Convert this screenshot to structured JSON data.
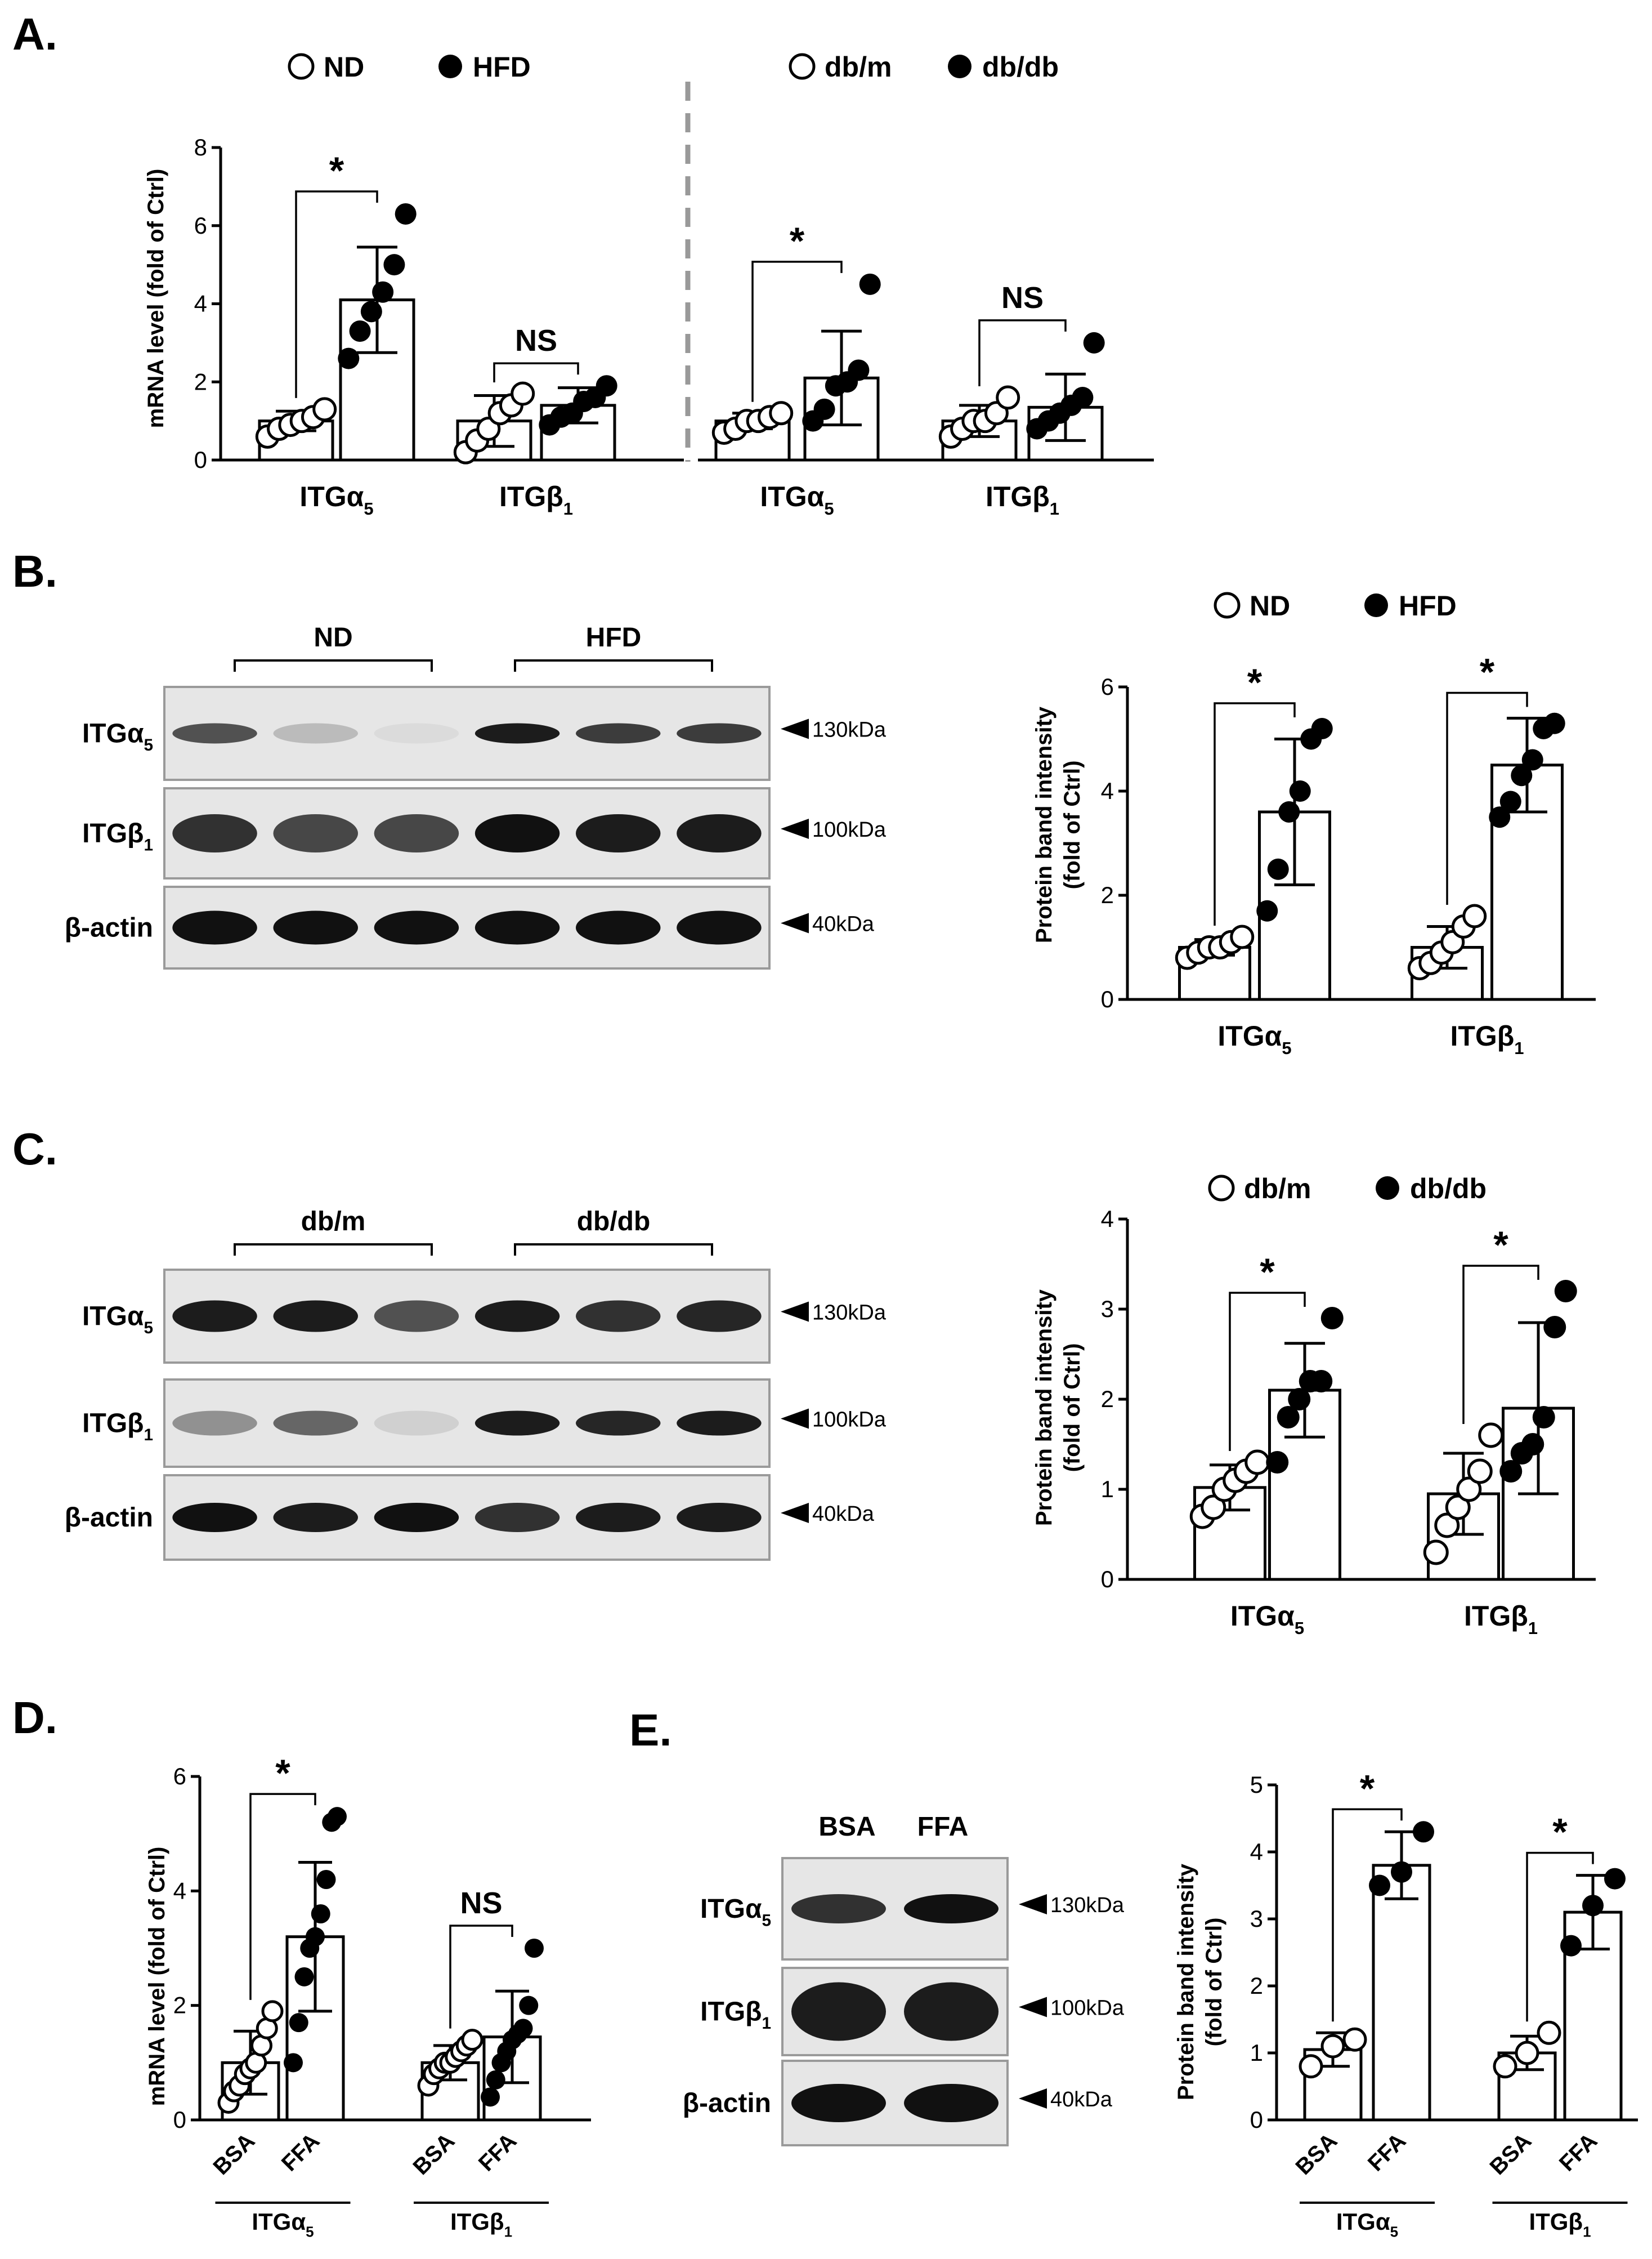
{
  "colors": {
    "open": "#ffffff",
    "filled": "#000000",
    "line": "#000000",
    "divider": "#999999",
    "blot_bg": "#e6e6e6"
  },
  "panels": {
    "A": {
      "label": "A.",
      "ylabel": "mRNA level (fold of Ctrl)",
      "legends": [
        {
          "open": "ND",
          "filled": "HFD"
        },
        {
          "open": "db/m",
          "filled": "db/db"
        }
      ]
    },
    "B": {
      "label": "B.",
      "blot": {
        "groups": [
          "ND",
          "HFD"
        ],
        "rows": [
          {
            "label_main": "ITGα",
            "label_sub": "5",
            "kda": "130kDa"
          },
          {
            "label_main": "ITGβ",
            "label_sub": "1",
            "kda": "100kDa"
          },
          {
            "label_main": "β-actin",
            "label_sub": "",
            "kda": "40kDa"
          }
        ]
      },
      "ylabel_lines": [
        "Protein band intensity",
        "(fold of Ctrl)"
      ],
      "legend": {
        "open": "ND",
        "filled": "HFD"
      }
    },
    "C": {
      "label": "C.",
      "blot": {
        "groups": [
          "db/m",
          "db/db"
        ],
        "rows": [
          {
            "label_main": "ITGα",
            "label_sub": "5",
            "kda": "130kDa"
          },
          {
            "label_main": "ITGβ",
            "label_sub": "1",
            "kda": "100kDa"
          },
          {
            "label_main": "β-actin",
            "label_sub": "",
            "kda": "40kDa"
          }
        ]
      },
      "ylabel_lines": [
        "Protein band intensity",
        "(fold of Ctrl)"
      ],
      "legend": {
        "open": "db/m",
        "filled": "db/db"
      }
    },
    "D": {
      "label": "D.",
      "ylabel": "mRNA level (fold of Ctrl)"
    },
    "E": {
      "label": "E.",
      "blot": {
        "groups": [
          "BSA",
          "FFA"
        ],
        "rows": [
          {
            "label_main": "ITGα",
            "label_sub": "5",
            "kda": "130kDa"
          },
          {
            "label_main": "ITGβ",
            "label_sub": "1",
            "kda": "100kDa"
          },
          {
            "label_main": "β-actin",
            "label_sub": "",
            "kda": "40kDa"
          }
        ]
      },
      "ylabel_lines": [
        "Protein band intensity",
        "(fold of Ctrl)"
      ]
    }
  },
  "chart_data": [
    {
      "id": "A1",
      "type": "bar",
      "panel": "A",
      "ylim": [
        0,
        8
      ],
      "yticks": [
        0,
        2,
        4,
        6,
        8
      ],
      "groups": [
        {
          "label_main": "ITGα",
          "label_sub": "5",
          "sig": "*",
          "bars": [
            {
              "series": "ND",
              "mean": 1.0,
              "sd": 0.25,
              "points": [
                0.6,
                0.8,
                0.9,
                1.0,
                1.1,
                1.3
              ]
            },
            {
              "series": "HFD",
              "mean": 4.1,
              "sd": 1.35,
              "points": [
                2.6,
                3.3,
                3.8,
                4.3,
                5.0,
                6.3
              ]
            }
          ]
        },
        {
          "label_main": "ITGβ",
          "label_sub": "1",
          "sig": "NS",
          "bars": [
            {
              "series": "ND",
              "mean": 1.0,
              "sd": 0.65,
              "points": [
                0.2,
                0.5,
                0.8,
                1.2,
                1.4,
                1.7
              ]
            },
            {
              "series": "HFD",
              "mean": 1.4,
              "sd": 0.45,
              "points": [
                0.9,
                1.1,
                1.2,
                1.5,
                1.6,
                1.9
              ]
            }
          ]
        }
      ]
    },
    {
      "id": "A2",
      "type": "bar",
      "panel": "A",
      "ylim": [
        0,
        8
      ],
      "groups": [
        {
          "label_main": "ITGα",
          "label_sub": "5",
          "sig": "*",
          "bars": [
            {
              "series": "db/m",
              "mean": 1.0,
              "sd": 0.2,
              "points": [
                0.7,
                0.8,
                1.0,
                1.0,
                1.1,
                1.2
              ]
            },
            {
              "series": "db/db",
              "mean": 2.1,
              "sd": 1.2,
              "points": [
                1.0,
                1.3,
                1.9,
                2.0,
                2.3,
                4.5
              ]
            }
          ]
        },
        {
          "label_main": "ITGβ",
          "label_sub": "1",
          "sig": "NS",
          "bars": [
            {
              "series": "db/m",
              "mean": 1.0,
              "sd": 0.4,
              "points": [
                0.6,
                0.8,
                1.0,
                1.0,
                1.2,
                1.6
              ]
            },
            {
              "series": "db/db",
              "mean": 1.35,
              "sd": 0.85,
              "points": [
                0.8,
                1.0,
                1.2,
                1.4,
                1.6,
                3.0
              ]
            }
          ]
        }
      ]
    },
    {
      "id": "B",
      "type": "bar",
      "panel": "B",
      "ylim": [
        0,
        6
      ],
      "yticks": [
        0,
        2,
        4,
        6
      ],
      "groups": [
        {
          "label_main": "ITGα",
          "label_sub": "5",
          "sig": "*",
          "bars": [
            {
              "series": "ND",
              "mean": 1.0,
              "sd": 0.15,
              "points": [
                0.8,
                0.9,
                1.0,
                1.0,
                1.1,
                1.2
              ]
            },
            {
              "series": "HFD",
              "mean": 3.6,
              "sd": 1.4,
              "points": [
                1.7,
                2.5,
                3.6,
                4.0,
                5.0,
                5.2
              ]
            }
          ]
        },
        {
          "label_main": "ITGβ",
          "label_sub": "1",
          "sig": "*",
          "bars": [
            {
              "series": "ND",
              "mean": 1.0,
              "sd": 0.4,
              "points": [
                0.6,
                0.7,
                0.9,
                1.1,
                1.4,
                1.6
              ]
            },
            {
              "series": "HFD",
              "mean": 4.5,
              "sd": 0.9,
              "points": [
                3.5,
                3.8,
                4.3,
                4.6,
                5.2,
                5.3
              ]
            }
          ]
        }
      ]
    },
    {
      "id": "C",
      "type": "bar",
      "panel": "C",
      "ylim": [
        0,
        4
      ],
      "yticks": [
        0,
        1,
        2,
        3,
        4
      ],
      "groups": [
        {
          "label_main": "ITGα",
          "label_sub": "5",
          "sig": "*",
          "bars": [
            {
              "series": "db/m",
              "mean": 1.02,
              "sd": 0.25,
              "points": [
                0.7,
                0.8,
                1.0,
                1.1,
                1.2,
                1.3
              ]
            },
            {
              "series": "db/db",
              "mean": 2.1,
              "sd": 0.52,
              "points": [
                1.3,
                1.8,
                2.0,
                2.2,
                2.2,
                2.9
              ]
            }
          ]
        },
        {
          "label_main": "ITGβ",
          "label_sub": "1",
          "sig": "*",
          "bars": [
            {
              "series": "db/m",
              "mean": 0.95,
              "sd": 0.45,
              "points": [
                0.3,
                0.6,
                0.8,
                1.0,
                1.2,
                1.6
              ]
            },
            {
              "series": "db/db",
              "mean": 1.9,
              "sd": 0.95,
              "points": [
                1.2,
                1.4,
                1.5,
                1.8,
                2.8,
                3.2
              ]
            }
          ]
        }
      ]
    },
    {
      "id": "D",
      "type": "bar",
      "panel": "D",
      "ylim": [
        0,
        6
      ],
      "yticks": [
        0,
        2,
        4,
        6
      ],
      "groups": [
        {
          "label_main": "ITGα",
          "label_sub": "5",
          "sig": "*",
          "xcats": [
            "BSA",
            "FFA"
          ],
          "bars": [
            {
              "series": "BSA",
              "mean": 1.0,
              "sd": 0.55,
              "points": [
                0.3,
                0.5,
                0.6,
                0.8,
                0.9,
                1.0,
                1.3,
                1.6,
                1.9
              ]
            },
            {
              "series": "FFA",
              "mean": 3.2,
              "sd": 1.3,
              "points": [
                1.0,
                1.7,
                2.5,
                3.0,
                3.2,
                3.6,
                4.2,
                5.2,
                5.3
              ]
            }
          ]
        },
        {
          "label_main": "ITGβ",
          "label_sub": "1",
          "sig": "NS",
          "xcats": [
            "BSA",
            "FFA"
          ],
          "bars": [
            {
              "series": "BSA",
              "mean": 1.0,
              "sd": 0.3,
              "points": [
                0.6,
                0.8,
                0.9,
                1.0,
                1.0,
                1.1,
                1.2,
                1.3,
                1.4
              ]
            },
            {
              "series": "FFA",
              "mean": 1.45,
              "sd": 0.8,
              "points": [
                0.4,
                0.7,
                1.0,
                1.2,
                1.4,
                1.5,
                1.6,
                2.0,
                3.0
              ]
            }
          ]
        }
      ]
    },
    {
      "id": "E",
      "type": "bar",
      "panel": "E",
      "ylim": [
        0,
        5
      ],
      "yticks": [
        0,
        1,
        2,
        3,
        4,
        5
      ],
      "groups": [
        {
          "label_main": "ITGα",
          "label_sub": "5",
          "sig": "*",
          "xcats": [
            "BSA",
            "FFA"
          ],
          "bars": [
            {
              "series": "BSA",
              "mean": 1.05,
              "sd": 0.25,
              "points": [
                0.8,
                1.1,
                1.2
              ]
            },
            {
              "series": "FFA",
              "mean": 3.8,
              "sd": 0.5,
              "points": [
                3.5,
                3.7,
                4.3
              ]
            }
          ]
        },
        {
          "label_main": "ITGβ",
          "label_sub": "1",
          "sig": "*",
          "xcats": [
            "BSA",
            "FFA"
          ],
          "bars": [
            {
              "series": "BSA",
              "mean": 1.0,
              "sd": 0.25,
              "points": [
                0.8,
                1.0,
                1.3
              ]
            },
            {
              "series": "FFA",
              "mean": 3.1,
              "sd": 0.55,
              "points": [
                2.6,
                3.2,
                3.6
              ]
            }
          ]
        }
      ]
    }
  ]
}
